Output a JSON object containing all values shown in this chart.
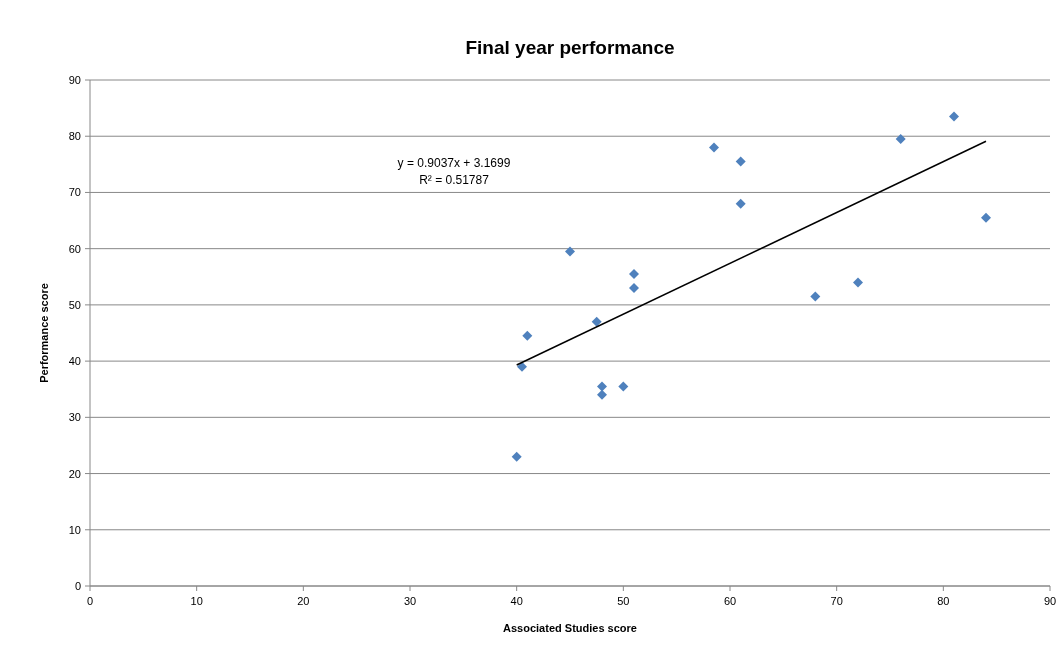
{
  "chart_data": {
    "type": "scatter",
    "title": "Final year performance",
    "xlabel": "Associated Studies score",
    "ylabel": "Performance score",
    "xlim": [
      0,
      90
    ],
    "xticks": [
      0,
      10,
      20,
      30,
      40,
      50,
      60,
      70,
      80,
      90
    ],
    "ylim": [
      0,
      90
    ],
    "yticks": [
      0,
      10,
      20,
      30,
      40,
      50,
      60,
      70,
      80,
      90
    ],
    "grid": "y",
    "marker": "diamond",
    "series": [
      {
        "color": "#4f81bd",
        "x": [
          40,
          40.5,
          41,
          45,
          47.5,
          48,
          48,
          50,
          51,
          51,
          58.5,
          61,
          61,
          68,
          72,
          76,
          81,
          84
        ],
        "values": [
          23,
          39,
          44.5,
          59.5,
          47,
          35.5,
          34,
          35.5,
          55.5,
          53,
          78,
          75.5,
          68,
          51.5,
          54,
          79.5,
          83.5,
          65.5
        ]
      },
      {
        "type": "line",
        "color": "#000000",
        "marker": "none",
        "x": [
          40,
          84
        ],
        "values": [
          39.3,
          79.1
        ]
      }
    ],
    "annotations": [
      "y = 0.9037x + 3.1699",
      "R² = 0.51787"
    ]
  }
}
